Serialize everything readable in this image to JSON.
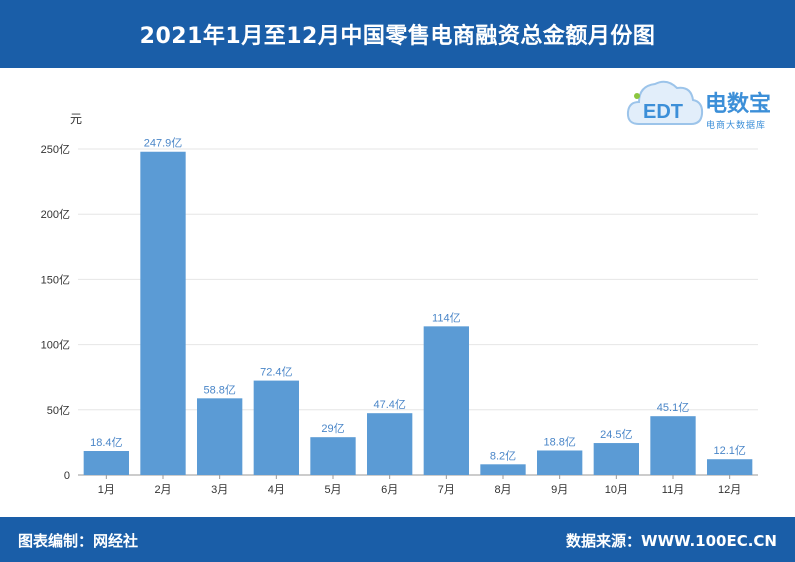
{
  "header": {
    "title": "2021年1月至12月中国零售电商融资总金额月份图"
  },
  "logo": {
    "brand": "电数宝",
    "tagline": "电商大数据库",
    "mark": "EDT"
  },
  "footer": {
    "left": "图表编制：网经社",
    "right": "数据来源：WWW.100EC.CN"
  },
  "colors": {
    "header": "#1a5ea8",
    "bar": "#5b9bd5",
    "label": "#4a86c8",
    "footer": "#1a5ea8"
  },
  "chart_data": {
    "type": "bar",
    "ylabel": "元",
    "categories": [
      "1月",
      "2月",
      "3月",
      "4月",
      "5月",
      "6月",
      "7月",
      "8月",
      "9月",
      "10月",
      "11月",
      "12月"
    ],
    "values": [
      18.4,
      247.9,
      58.8,
      72.4,
      29,
      47.4,
      114,
      8.2,
      18.8,
      24.5,
      45.1,
      12.1
    ],
    "data_labels": [
      "18.4亿",
      "247.9亿",
      "58.8亿",
      "72.4亿",
      "29亿",
      "47.4亿",
      "114亿",
      "8.2亿",
      "18.8亿",
      "24.5亿",
      "45.1亿",
      "12.1亿"
    ],
    "yticks": [
      0,
      50,
      100,
      150,
      200,
      250
    ],
    "ytick_labels": [
      "0",
      "50亿",
      "100亿",
      "150亿",
      "200亿",
      "250亿"
    ],
    "ylim": [
      0,
      250
    ],
    "grid": true
  }
}
